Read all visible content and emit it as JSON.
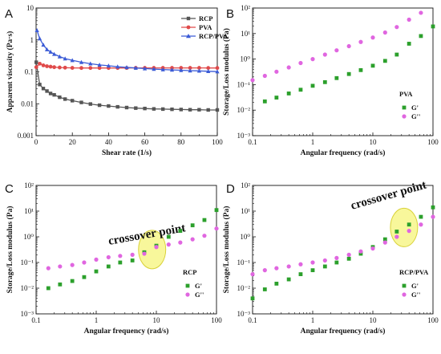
{
  "chart_data": [
    {
      "panel": "A",
      "type": "line",
      "xlabel": "Shear rate (1/s)",
      "ylabel": "Apparent viscosity (Pa·s)",
      "xlim": [
        0,
        100
      ],
      "ylim": [
        0.001,
        10
      ],
      "yscale": "log",
      "xticks": [
        "0",
        "20",
        "40",
        "60",
        "80",
        "100"
      ],
      "yticks": [
        "0.001",
        "0.01",
        "0.1",
        "1",
        "10"
      ],
      "legend_position": "top-right",
      "series": [
        {
          "name": "RCP",
          "color": "#555555",
          "marker": "square",
          "x": [
            0.1,
            2,
            4,
            6,
            8,
            10,
            13,
            16,
            20,
            25,
            30,
            35,
            40,
            45,
            50,
            55,
            60,
            65,
            70,
            75,
            80,
            85,
            90,
            95,
            100
          ],
          "y": [
            0.2,
            0.04,
            0.03,
            0.025,
            0.021,
            0.019,
            0.016,
            0.014,
            0.0125,
            0.011,
            0.0098,
            0.009,
            0.0085,
            0.008,
            0.0076,
            0.0073,
            0.0071,
            0.0069,
            0.0068,
            0.0067,
            0.0066,
            0.0065,
            0.0065,
            0.0064,
            0.0064
          ]
        },
        {
          "name": "PVA",
          "color": "#e04a4a",
          "marker": "circle",
          "x": [
            0.1,
            2,
            4,
            6,
            8,
            10,
            13,
            16,
            20,
            25,
            30,
            35,
            40,
            45,
            50,
            55,
            60,
            65,
            70,
            75,
            80,
            85,
            90,
            95,
            100
          ],
          "y": [
            0.14,
            0.18,
            0.16,
            0.15,
            0.145,
            0.14,
            0.137,
            0.135,
            0.133,
            0.132,
            0.132,
            0.132,
            0.132,
            0.132,
            0.132,
            0.133,
            0.133,
            0.133,
            0.133,
            0.133,
            0.133,
            0.133,
            0.133,
            0.132,
            0.132
          ]
        },
        {
          "name": "RCP/PVA",
          "color": "#3b5bd6",
          "marker": "triangle",
          "x": [
            0.5,
            2,
            4,
            6,
            8,
            10,
            13,
            16,
            20,
            25,
            30,
            35,
            40,
            45,
            50,
            55,
            60,
            65,
            70,
            75,
            80,
            85,
            90,
            95,
            100
          ],
          "y": [
            2.0,
            1.1,
            0.7,
            0.5,
            0.42,
            0.36,
            0.3,
            0.26,
            0.23,
            0.2,
            0.18,
            0.165,
            0.155,
            0.145,
            0.138,
            0.132,
            0.127,
            0.122,
            0.118,
            0.115,
            0.112,
            0.109,
            0.107,
            0.104,
            0.102
          ]
        }
      ]
    },
    {
      "panel": "B",
      "type": "scatter",
      "xlabel": "Angular frequency  (rad/s)",
      "ylabel": "Storage/Loss modulus  (Pa)",
      "xscale": "log",
      "yscale": "log",
      "xlim": [
        0.1,
        100
      ],
      "ylim": [
        0.001,
        100
      ],
      "xticks": [
        "0.1",
        "1",
        "10",
        "100"
      ],
      "yticks": [
        "10⁻³",
        "10⁻²",
        "10⁻¹",
        "10⁰",
        "10¹",
        "10²"
      ],
      "legend_title": "PVA",
      "legend_position": "bottom-right",
      "series": [
        {
          "name": "G'",
          "color": "#2ca02c",
          "marker": "square",
          "x": [
            0.16,
            0.25,
            0.4,
            0.63,
            1.0,
            1.6,
            2.5,
            4.0,
            6.3,
            10,
            16,
            25,
            40,
            63,
            100
          ],
          "y": [
            0.022,
            0.031,
            0.045,
            0.063,
            0.09,
            0.125,
            0.18,
            0.26,
            0.37,
            0.55,
            0.85,
            1.5,
            4.0,
            8.0,
            19
          ]
        },
        {
          "name": "G''",
          "color": "#e066e0",
          "marker": "circle",
          "x": [
            0.1,
            0.16,
            0.25,
            0.4,
            0.63,
            1.0,
            1.6,
            2.5,
            4.0,
            6.3,
            10,
            16,
            25,
            40,
            63
          ],
          "y": [
            0.15,
            0.22,
            0.32,
            0.47,
            0.7,
            1.0,
            1.5,
            2.2,
            3.2,
            4.7,
            7.0,
            11,
            18,
            35,
            65
          ]
        }
      ]
    },
    {
      "panel": "C",
      "type": "scatter",
      "xlabel": "Angular frequency  (rad/s)",
      "ylabel": "Storage/Loss modulus  (Pa)",
      "xscale": "log",
      "yscale": "log",
      "xlim": [
        0.1,
        100
      ],
      "ylim": [
        0.001,
        100
      ],
      "xticks": [
        "0.1",
        "1",
        "10",
        "100"
      ],
      "yticks": [
        "10⁻³",
        "10⁻²",
        "10⁻¹",
        "10⁰",
        "10¹",
        "10²"
      ],
      "legend_title": "RCP",
      "legend_position": "bottom-right",
      "annotation": "crossover point",
      "series": [
        {
          "name": "G'",
          "color": "#2ca02c",
          "marker": "square",
          "x": [
            0.16,
            0.25,
            0.4,
            0.63,
            1.0,
            1.6,
            2.5,
            4.0,
            6.3,
            10,
            16,
            25,
            40,
            63,
            100
          ],
          "y": [
            0.01,
            0.014,
            0.019,
            0.027,
            0.045,
            0.07,
            0.1,
            0.12,
            0.25,
            0.45,
            1.0,
            1.7,
            2.8,
            4.5,
            11
          ]
        },
        {
          "name": "G''",
          "color": "#e066e0",
          "marker": "circle",
          "x": [
            0.16,
            0.25,
            0.4,
            0.63,
            1.0,
            1.6,
            2.5,
            4.0,
            6.3,
            10,
            16,
            25,
            40,
            63,
            100
          ],
          "y": [
            0.06,
            0.07,
            0.08,
            0.1,
            0.13,
            0.16,
            0.18,
            0.2,
            0.22,
            0.4,
            0.5,
            0.6,
            0.8,
            1.1,
            2.1
          ]
        }
      ]
    },
    {
      "panel": "D",
      "type": "scatter",
      "xlabel": "Angular frequency  (rad/s)",
      "ylabel": "Storage/Loss modulus  (Pa)",
      "xscale": "log",
      "yscale": "log",
      "xlim": [
        0.1,
        100
      ],
      "ylim": [
        0.001,
        100
      ],
      "xticks": [
        "0.1",
        "1",
        "10",
        "100"
      ],
      "yticks": [
        "10⁻³",
        "10⁻²",
        "10⁻¹",
        "10⁰",
        "10¹",
        "10²"
      ],
      "legend_title": "RCP/PVA",
      "legend_position": "bottom-right",
      "annotation": "crossover point",
      "series": [
        {
          "name": "G'",
          "color": "#2ca02c",
          "marker": "square",
          "x": [
            0.1,
            0.16,
            0.25,
            0.4,
            0.63,
            1.0,
            1.6,
            2.5,
            4.0,
            6.3,
            10,
            16,
            25,
            40,
            63,
            100
          ],
          "y": [
            0.004,
            0.009,
            0.015,
            0.022,
            0.035,
            0.05,
            0.07,
            0.1,
            0.14,
            0.22,
            0.4,
            0.8,
            1.6,
            3.0,
            6.0,
            14
          ]
        },
        {
          "name": "G''",
          "color": "#e066e0",
          "marker": "circle",
          "x": [
            0.1,
            0.16,
            0.25,
            0.4,
            0.63,
            1.0,
            1.6,
            2.5,
            4.0,
            6.3,
            10,
            16,
            25,
            40,
            63,
            100
          ],
          "y": [
            0.035,
            0.05,
            0.06,
            0.07,
            0.085,
            0.1,
            0.12,
            0.15,
            0.2,
            0.27,
            0.35,
            0.6,
            1.0,
            1.7,
            3.0,
            6.0
          ]
        }
      ]
    }
  ]
}
